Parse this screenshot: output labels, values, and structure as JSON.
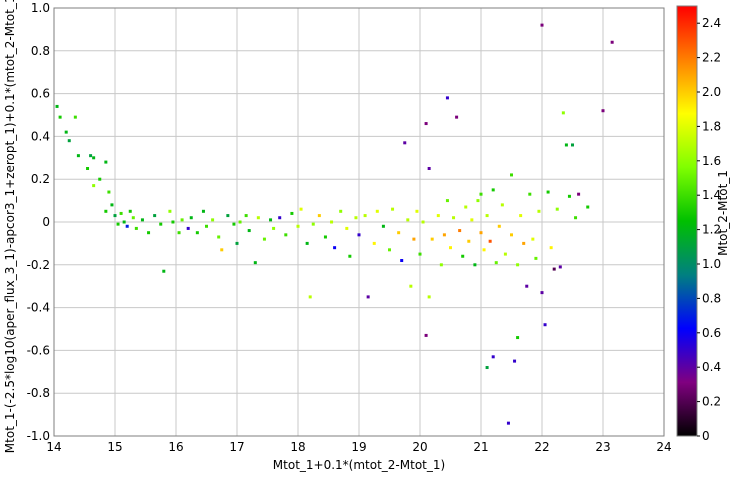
{
  "chart_data": {
    "type": "scatter",
    "xlabel": "Mtot_1+0.1*(mtot_2-Mtot_1)",
    "ylabel": "Mtot_1-(-2.5*log10(aper_flux_3_1)-apcor3_1+zeropt_1)+0.1*(mtot_2-Mtot_1)",
    "xlim": [
      14,
      24
    ],
    "ylim": [
      -1.0,
      1.0
    ],
    "x_ticks": [
      "14",
      "15",
      "16",
      "17",
      "18",
      "19",
      "20",
      "21",
      "22",
      "23",
      "24"
    ],
    "y_ticks": [
      "-1.0",
      "-0.8",
      "-0.6",
      "-0.4",
      "-0.2",
      "0",
      "0.2",
      "0.4",
      "0.6",
      "0.8",
      "1.0"
    ],
    "grid": true,
    "colorbar": {
      "label": "Mtot_2-Mtot_1",
      "range": [
        0,
        2.5
      ],
      "ticks": [
        "0",
        "0.2",
        "0.4",
        "0.6",
        "0.8",
        "1.0",
        "1.2",
        "1.4",
        "1.6",
        "1.8",
        "2.0",
        "2.2",
        "2.4"
      ],
      "colormap": [
        "#000000",
        "#800080",
        "#0000ff",
        "#008080",
        "#00c000",
        "#80ff00",
        "#ffff00",
        "#ff8000",
        "#ff0000"
      ]
    },
    "points": [
      [
        14.05,
        0.54,
        1.2
      ],
      [
        14.1,
        0.49,
        1.3
      ],
      [
        14.2,
        0.42,
        1.2
      ],
      [
        14.25,
        0.38,
        1.1
      ],
      [
        14.35,
        0.49,
        1.4
      ],
      [
        14.4,
        0.31,
        1.2
      ],
      [
        14.55,
        0.25,
        1.3
      ],
      [
        14.6,
        0.31,
        1.1
      ],
      [
        14.65,
        0.3,
        1.2
      ],
      [
        14.65,
        0.17,
        1.6
      ],
      [
        14.75,
        0.2,
        1.3
      ],
      [
        14.85,
        0.28,
        1.2
      ],
      [
        14.85,
        0.05,
        1.3
      ],
      [
        14.9,
        0.14,
        1.4
      ],
      [
        14.95,
        0.08,
        1.2
      ],
      [
        15.0,
        0.03,
        1.1
      ],
      [
        15.05,
        -0.01,
        1.3
      ],
      [
        15.1,
        0.04,
        1.4
      ],
      [
        15.15,
        0.0,
        1.2
      ],
      [
        15.2,
        -0.02,
        0.7
      ],
      [
        15.25,
        0.05,
        1.3
      ],
      [
        15.3,
        0.02,
        1.5
      ],
      [
        15.35,
        -0.03,
        1.4
      ],
      [
        15.45,
        0.01,
        1.2
      ],
      [
        15.55,
        -0.05,
        1.3
      ],
      [
        15.65,
        0.03,
        1.1
      ],
      [
        15.75,
        -0.01,
        1.3
      ],
      [
        15.8,
        -0.23,
        1.2
      ],
      [
        15.9,
        0.05,
        1.6
      ],
      [
        15.95,
        0.0,
        1.3
      ],
      [
        16.05,
        -0.05,
        1.4
      ],
      [
        16.1,
        0.01,
        1.5
      ],
      [
        16.2,
        -0.03,
        0.5
      ],
      [
        16.25,
        0.02,
        1.2
      ],
      [
        16.35,
        -0.05,
        1.3
      ],
      [
        16.45,
        0.05,
        1.2
      ],
      [
        16.5,
        -0.02,
        1.4
      ],
      [
        16.6,
        0.01,
        1.6
      ],
      [
        16.7,
        -0.07,
        1.5
      ],
      [
        16.75,
        -0.13,
        2.0
      ],
      [
        16.85,
        0.03,
        1.1
      ],
      [
        16.95,
        -0.01,
        1.3
      ],
      [
        17.0,
        -0.1,
        1.1
      ],
      [
        17.05,
        0.0,
        1.5
      ],
      [
        17.15,
        0.03,
        1.4
      ],
      [
        17.2,
        -0.04,
        1.2
      ],
      [
        17.3,
        -0.19,
        1.2
      ],
      [
        17.35,
        0.02,
        1.7
      ],
      [
        17.45,
        -0.08,
        1.5
      ],
      [
        17.55,
        0.01,
        1.2
      ],
      [
        17.6,
        -0.03,
        1.6
      ],
      [
        17.7,
        0.02,
        0.5
      ],
      [
        17.8,
        -0.06,
        1.4
      ],
      [
        17.9,
        0.04,
        1.3
      ],
      [
        18.0,
        -0.02,
        1.7
      ],
      [
        18.05,
        0.06,
        1.8
      ],
      [
        18.15,
        -0.1,
        1.2
      ],
      [
        18.2,
        -0.35,
        1.7
      ],
      [
        18.25,
        -0.01,
        1.6
      ],
      [
        18.35,
        0.03,
        2.0
      ],
      [
        18.45,
        -0.07,
        1.3
      ],
      [
        18.55,
        0.0,
        1.7
      ],
      [
        18.6,
        -0.12,
        0.6
      ],
      [
        18.7,
        0.05,
        1.6
      ],
      [
        18.8,
        -0.03,
        1.8
      ],
      [
        18.85,
        -0.16,
        1.3
      ],
      [
        18.95,
        0.02,
        1.7
      ],
      [
        19.0,
        -0.06,
        0.5
      ],
      [
        19.1,
        0.03,
        1.7
      ],
      [
        19.15,
        -0.35,
        0.4
      ],
      [
        19.25,
        -0.1,
        1.9
      ],
      [
        19.3,
        0.05,
        1.8
      ],
      [
        19.4,
        -0.02,
        1.2
      ],
      [
        19.5,
        -0.13,
        1.5
      ],
      [
        19.55,
        0.06,
        1.7
      ],
      [
        19.65,
        -0.05,
        2.0
      ],
      [
        19.7,
        -0.18,
        0.6
      ],
      [
        19.75,
        0.37,
        0.4
      ],
      [
        19.8,
        0.01,
        1.7
      ],
      [
        19.85,
        -0.3,
        1.7
      ],
      [
        19.9,
        -0.08,
        2.1
      ],
      [
        19.95,
        0.05,
        1.8
      ],
      [
        20.0,
        -0.15,
        1.4
      ],
      [
        20.05,
        0.0,
        1.7
      ],
      [
        20.1,
        -0.53,
        0.3
      ],
      [
        20.1,
        0.46,
        0.3
      ],
      [
        20.15,
        -0.35,
        1.7
      ],
      [
        20.15,
        0.25,
        0.4
      ],
      [
        20.2,
        -0.08,
        2.0
      ],
      [
        20.3,
        0.03,
        1.8
      ],
      [
        20.35,
        -0.2,
        1.6
      ],
      [
        20.4,
        -0.06,
        2.1
      ],
      [
        20.45,
        0.1,
        1.5
      ],
      [
        20.45,
        0.58,
        0.5
      ],
      [
        20.5,
        -0.12,
        1.9
      ],
      [
        20.55,
        0.02,
        1.7
      ],
      [
        20.6,
        0.49,
        0.3
      ],
      [
        20.65,
        -0.04,
        2.2
      ],
      [
        20.7,
        -0.16,
        1.3
      ],
      [
        20.75,
        0.07,
        1.7
      ],
      [
        20.8,
        -0.09,
        2.0
      ],
      [
        20.85,
        0.01,
        1.8
      ],
      [
        20.9,
        -0.2,
        1.2
      ],
      [
        20.95,
        0.1,
        1.6
      ],
      [
        21.0,
        -0.05,
        2.1
      ],
      [
        21.0,
        0.13,
        1.4
      ],
      [
        21.05,
        -0.13,
        1.9
      ],
      [
        21.1,
        0.03,
        1.7
      ],
      [
        21.1,
        -0.68,
        1.1
      ],
      [
        21.15,
        -0.09,
        2.3
      ],
      [
        21.2,
        0.15,
        1.3
      ],
      [
        21.2,
        -0.63,
        0.5
      ],
      [
        21.25,
        -0.19,
        1.5
      ],
      [
        21.3,
        -0.02,
        2.0
      ],
      [
        21.35,
        0.08,
        1.7
      ],
      [
        21.4,
        -0.15,
        1.7
      ],
      [
        21.45,
        -0.94,
        0.5
      ],
      [
        21.5,
        0.22,
        1.4
      ],
      [
        21.5,
        -0.06,
        2.0
      ],
      [
        21.55,
        -0.65,
        0.5
      ],
      [
        21.6,
        -0.54,
        1.3
      ],
      [
        21.6,
        -0.2,
        1.6
      ],
      [
        21.65,
        0.03,
        1.8
      ],
      [
        21.7,
        -0.1,
        2.1
      ],
      [
        21.75,
        -0.3,
        0.4
      ],
      [
        21.8,
        0.13,
        1.4
      ],
      [
        21.85,
        -0.08,
        1.8
      ],
      [
        21.9,
        -0.17,
        1.5
      ],
      [
        21.95,
        0.05,
        1.7
      ],
      [
        22.0,
        0.92,
        0.3
      ],
      [
        22.0,
        -0.33,
        0.4
      ],
      [
        22.05,
        -0.48,
        0.5
      ],
      [
        22.1,
        0.14,
        1.3
      ],
      [
        22.15,
        -0.12,
        1.9
      ],
      [
        22.2,
        -0.22,
        0.2
      ],
      [
        22.25,
        0.06,
        1.6
      ],
      [
        22.3,
        -0.21,
        0.4
      ],
      [
        22.35,
        0.51,
        1.6
      ],
      [
        22.4,
        0.36,
        1.2
      ],
      [
        22.45,
        0.12,
        1.3
      ],
      [
        22.5,
        0.36,
        1.1
      ],
      [
        22.55,
        0.02,
        1.4
      ],
      [
        22.6,
        0.13,
        0.3
      ],
      [
        22.75,
        0.07,
        1.3
      ],
      [
        23.0,
        0.52,
        0.3
      ],
      [
        23.15,
        0.84,
        0.3
      ]
    ]
  }
}
